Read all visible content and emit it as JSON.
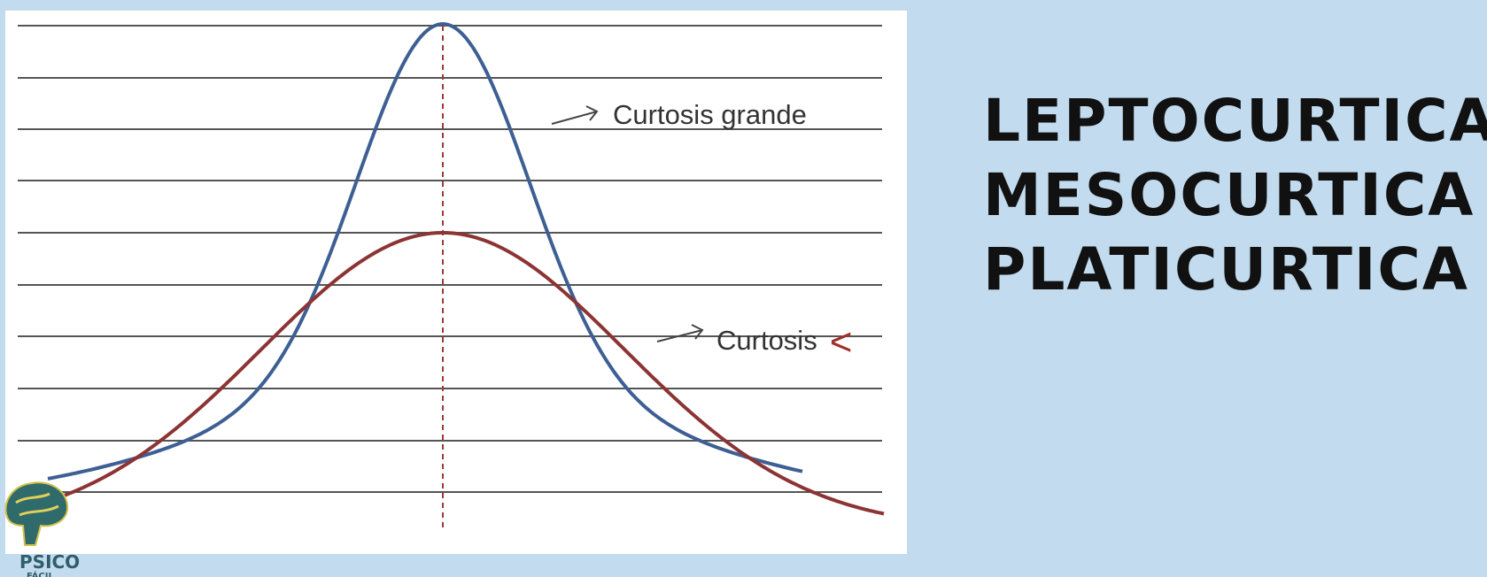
{
  "annotations": {
    "big": "Curtosis grande",
    "small": "Curtosis",
    "small_symbol": "<"
  },
  "terms": [
    "LEPTOCURTICA",
    "MESOCURTICA",
    "PLATICURTICA"
  ],
  "logo": {
    "text_top": "PSICO",
    "text_bottom": "FÁCIL"
  },
  "colors": {
    "background": "#c2dbee",
    "panel": "#ffffff",
    "grid": "#555555",
    "peaked_curve": "#3e5f93",
    "flat_curve": "#8c3434",
    "center_line": "#9a3a3a"
  }
}
